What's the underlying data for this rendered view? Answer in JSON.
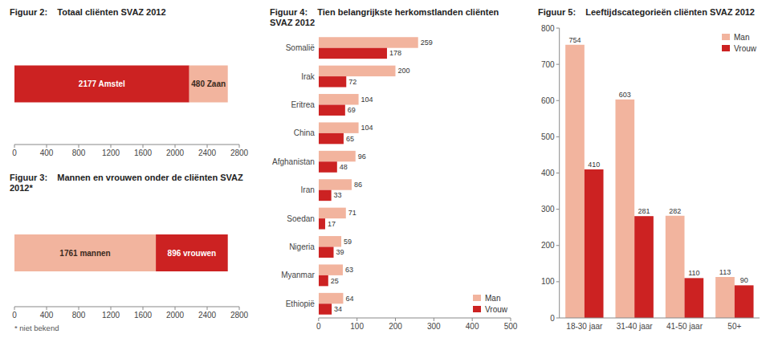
{
  "chart_data": [
    {
      "type": "bar",
      "title": "Figuur 2:    Totaal cliënten SVAZ 2012",
      "orientation": "horizontal",
      "stacked": true,
      "data_labels": true,
      "categories": [
        null
      ],
      "series": [
        {
          "color": "#cc2222",
          "values": [
            2177
          ],
          "value_labels": [
            "2177 Amstel"
          ]
        },
        {
          "color": "#f2b49e",
          "values": [
            480
          ],
          "value_labels": [
            "480 Zaan"
          ]
        }
      ],
      "xlim": [
        0,
        2800
      ],
      "xticks": [
        0,
        400,
        800,
        1200,
        1600,
        2000,
        2400,
        2800
      ]
    },
    {
      "type": "bar",
      "title": "Figuur 3:    Mannen en vrouwen onder de cliënten SVAZ 2012*",
      "orientation": "horizontal",
      "stacked": true,
      "data_labels": true,
      "categories": [
        null
      ],
      "series": [
        {
          "color": "#f2b49e",
          "values": [
            1761
          ],
          "value_labels": [
            "1761 mannen"
          ]
        },
        {
          "color": "#cc2222",
          "values": [
            896
          ],
          "value_labels": [
            "896 vrouwen"
          ]
        }
      ],
      "xlim": [
        0,
        2800
      ],
      "xticks": [
        0,
        400,
        800,
        1200,
        1600,
        2000,
        2400,
        2800
      ],
      "annotations": [
        "* niet bekend"
      ]
    },
    {
      "type": "bar",
      "title": "Figuur 4:    Tien belangrijkste herkomstlanden cliënten SVAZ 2012",
      "orientation": "horizontal",
      "data_labels": true,
      "legend": "lower right",
      "categories": [
        "Somalië",
        "Irak",
        "Eritrea",
        "China",
        "Afghanistan",
        "Iran",
        "Soedan",
        "Nigeria",
        "Myanmar",
        "Ethiopië"
      ],
      "series": [
        {
          "name": "Man",
          "color": "#f2b49e",
          "values": [
            259,
            200,
            104,
            104,
            96,
            86,
            71,
            59,
            63,
            64
          ]
        },
        {
          "name": "Vrouw",
          "color": "#cc2222",
          "values": [
            178,
            72,
            69,
            65,
            48,
            33,
            17,
            39,
            25,
            34
          ]
        }
      ],
      "xlim": [
        0,
        500
      ],
      "xticks": [
        0,
        100,
        200,
        300,
        400,
        500
      ]
    },
    {
      "type": "bar",
      "title": "Figuur 5:    Leeftijdscategorieën cliënten SVAZ 2012",
      "data_labels": true,
      "legend": "upper right",
      "categories": [
        "18-30 jaar",
        "31-40 jaar",
        "41-50 jaar",
        "50+"
      ],
      "series": [
        {
          "name": "Man",
          "color": "#f2b49e",
          "values": [
            754,
            603,
            282,
            113
          ]
        },
        {
          "name": "Vrouw",
          "color": "#cc2222",
          "values": [
            410,
            281,
            110,
            90
          ]
        }
      ],
      "ylim": [
        0,
        800
      ],
      "yticks": [
        0,
        100,
        200,
        300,
        400,
        500,
        600,
        700,
        800
      ]
    }
  ]
}
